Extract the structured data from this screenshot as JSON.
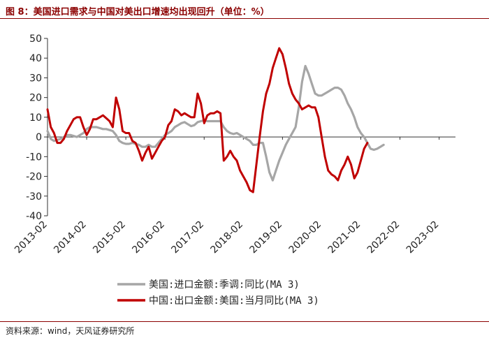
{
  "figure": {
    "title": "图 8：美国进口需求与中国对美出口增速均出现回升（单位：%）",
    "source": "资料来源：wind，天风证券研究所"
  },
  "chart_data": {
    "type": "line",
    "title": "图 8：美国进口需求与中国对美出口增速均出现回升（单位：%）",
    "xlabel": "",
    "ylabel": "",
    "ylim": [
      -40,
      50
    ],
    "yticks": [
      50,
      40,
      30,
      20,
      10,
      0,
      -10,
      -20,
      -30,
      -40
    ],
    "xlim": [
      0,
      125
    ],
    "xticks": [
      {
        "pos": 0,
        "label": "2013-02"
      },
      {
        "pos": 12,
        "label": "2014-02"
      },
      {
        "pos": 24,
        "label": "2015-02"
      },
      {
        "pos": 36,
        "label": "2016-02"
      },
      {
        "pos": 48,
        "label": "2017-02"
      },
      {
        "pos": 60,
        "label": "2018-02"
      },
      {
        "pos": 72,
        "label": "2019-02"
      },
      {
        "pos": 84,
        "label": "2020-02"
      },
      {
        "pos": 96,
        "label": "2021-02"
      },
      {
        "pos": 108,
        "label": "2022-02"
      },
      {
        "pos": 120,
        "label": "2023-02"
      }
    ],
    "legend_position": "bottom-center",
    "series": [
      {
        "name": "美国:进口金额:季调:同比(MA 3)",
        "color": "#a6a6a6",
        "points": [
          [
            0,
            3
          ],
          [
            1,
            -1
          ],
          [
            2,
            -2
          ],
          [
            3,
            -1.5
          ],
          [
            4,
            -1
          ],
          [
            5,
            0
          ],
          [
            6,
            1
          ],
          [
            7,
            1
          ],
          [
            8,
            0.5
          ],
          [
            9,
            0
          ],
          [
            10,
            1
          ],
          [
            11,
            2
          ],
          [
            12,
            4
          ],
          [
            13,
            5
          ],
          [
            14,
            5
          ],
          [
            15,
            5
          ],
          [
            16,
            4.5
          ],
          [
            17,
            4
          ],
          [
            18,
            4
          ],
          [
            19,
            3.5
          ],
          [
            20,
            3
          ],
          [
            21,
            1
          ],
          [
            22,
            -2
          ],
          [
            23,
            -3
          ],
          [
            24,
            -3.5
          ],
          [
            25,
            -3.5
          ],
          [
            26,
            -3
          ],
          [
            27,
            -3.5
          ],
          [
            28,
            -4
          ],
          [
            29,
            -5
          ],
          [
            30,
            -5
          ],
          [
            31,
            -4
          ],
          [
            32,
            -5
          ],
          [
            33,
            -5
          ],
          [
            34,
            -3
          ],
          [
            35,
            -1
          ],
          [
            36,
            1
          ],
          [
            37,
            2
          ],
          [
            38,
            3
          ],
          [
            39,
            5
          ],
          [
            40,
            6
          ],
          [
            41,
            7
          ],
          [
            42,
            7.5
          ],
          [
            43,
            6.5
          ],
          [
            44,
            5.5
          ],
          [
            45,
            6
          ],
          [
            46,
            7.5
          ],
          [
            47,
            8
          ],
          [
            48,
            8.5
          ],
          [
            49,
            8
          ],
          [
            50,
            8
          ],
          [
            51,
            8
          ],
          [
            52,
            8
          ],
          [
            53,
            8
          ],
          [
            54,
            5
          ],
          [
            55,
            3
          ],
          [
            56,
            2
          ],
          [
            57,
            1.5
          ],
          [
            58,
            2
          ],
          [
            59,
            1
          ],
          [
            60,
            0
          ],
          [
            61,
            -1
          ],
          [
            62,
            -2
          ],
          [
            63,
            -4
          ],
          [
            64,
            -4
          ],
          [
            65,
            -3
          ],
          [
            66,
            -3
          ],
          [
            67,
            -10
          ],
          [
            68,
            -18
          ],
          [
            69,
            -22
          ],
          [
            70,
            -17
          ],
          [
            71,
            -12
          ],
          [
            72,
            -8
          ],
          [
            73,
            -4
          ],
          [
            74,
            -1
          ],
          [
            75,
            2
          ],
          [
            76,
            5
          ],
          [
            77,
            15
          ],
          [
            78,
            28
          ],
          [
            79,
            36
          ],
          [
            80,
            32
          ],
          [
            81,
            27
          ],
          [
            82,
            22
          ],
          [
            83,
            21
          ],
          [
            84,
            21
          ],
          [
            85,
            22
          ],
          [
            86,
            23
          ],
          [
            87,
            24
          ],
          [
            88,
            25
          ],
          [
            89,
            25
          ],
          [
            90,
            24
          ],
          [
            91,
            21
          ],
          [
            92,
            17
          ],
          [
            93,
            14
          ],
          [
            94,
            10
          ],
          [
            95,
            5
          ],
          [
            96,
            2
          ],
          [
            97,
            0
          ],
          [
            98,
            -3
          ],
          [
            99,
            -6
          ],
          [
            100,
            -6.5
          ],
          [
            101,
            -6
          ],
          [
            102,
            -5
          ],
          [
            103,
            -4
          ]
        ]
      },
      {
        "name": "中国:出口金额:美国:当月同比(MA 3)",
        "color": "#c00000",
        "points": [
          [
            0,
            14
          ],
          [
            1,
            5
          ],
          [
            2,
            2
          ],
          [
            3,
            -3
          ],
          [
            4,
            -3
          ],
          [
            5,
            -1
          ],
          [
            6,
            3
          ],
          [
            7,
            6
          ],
          [
            8,
            9
          ],
          [
            9,
            10
          ],
          [
            10,
            10
          ],
          [
            11,
            5
          ],
          [
            12,
            1
          ],
          [
            13,
            4
          ],
          [
            14,
            9
          ],
          [
            15,
            9
          ],
          [
            16,
            10
          ],
          [
            17,
            11
          ],
          [
            18,
            9.5
          ],
          [
            19,
            8
          ],
          [
            20,
            5
          ],
          [
            21,
            20
          ],
          [
            22,
            14
          ],
          [
            23,
            3
          ],
          [
            24,
            2
          ],
          [
            25,
            2
          ],
          [
            26,
            -2
          ],
          [
            27,
            -3
          ],
          [
            28,
            -7
          ],
          [
            29,
            -12
          ],
          [
            30,
            -8
          ],
          [
            31,
            -5
          ],
          [
            32,
            -11
          ],
          [
            33,
            -8
          ],
          [
            34,
            -5
          ],
          [
            35,
            -2
          ],
          [
            36,
            0
          ],
          [
            37,
            6
          ],
          [
            38,
            8
          ],
          [
            39,
            14
          ],
          [
            40,
            13
          ],
          [
            41,
            11
          ],
          [
            42,
            12
          ],
          [
            43,
            11
          ],
          [
            44,
            10
          ],
          [
            45,
            10
          ],
          [
            46,
            22
          ],
          [
            47,
            17
          ],
          [
            48,
            7
          ],
          [
            49,
            11
          ],
          [
            50,
            12
          ],
          [
            51,
            12
          ],
          [
            52,
            13
          ],
          [
            53,
            12
          ],
          [
            54,
            -12
          ],
          [
            55,
            -10
          ],
          [
            56,
            -7
          ],
          [
            57,
            -10
          ],
          [
            58,
            -12
          ],
          [
            59,
            -17
          ],
          [
            60,
            -20
          ],
          [
            61,
            -23
          ],
          [
            62,
            -27
          ],
          [
            63,
            -28
          ],
          [
            64,
            -14
          ],
          [
            65,
            0
          ],
          [
            66,
            13
          ],
          [
            67,
            22
          ],
          [
            68,
            27
          ],
          [
            69,
            35
          ],
          [
            70,
            40
          ],
          [
            71,
            45
          ],
          [
            72,
            42
          ],
          [
            73,
            35
          ],
          [
            74,
            27
          ],
          [
            75,
            22
          ],
          [
            76,
            19
          ],
          [
            77,
            17
          ],
          [
            78,
            14
          ],
          [
            79,
            15
          ],
          [
            80,
            16
          ],
          [
            81,
            15
          ],
          [
            82,
            15
          ],
          [
            83,
            10
          ],
          [
            84,
            0
          ],
          [
            85,
            -10
          ],
          [
            86,
            -17
          ],
          [
            87,
            -19
          ],
          [
            88,
            -20
          ],
          [
            89,
            -22
          ],
          [
            90,
            -17
          ],
          [
            91,
            -14
          ],
          [
            92,
            -10
          ],
          [
            93,
            -14
          ],
          [
            94,
            -21
          ],
          [
            95,
            -18
          ],
          [
            96,
            -12
          ],
          [
            97,
            -6
          ],
          [
            98,
            -3
          ]
        ]
      }
    ]
  }
}
